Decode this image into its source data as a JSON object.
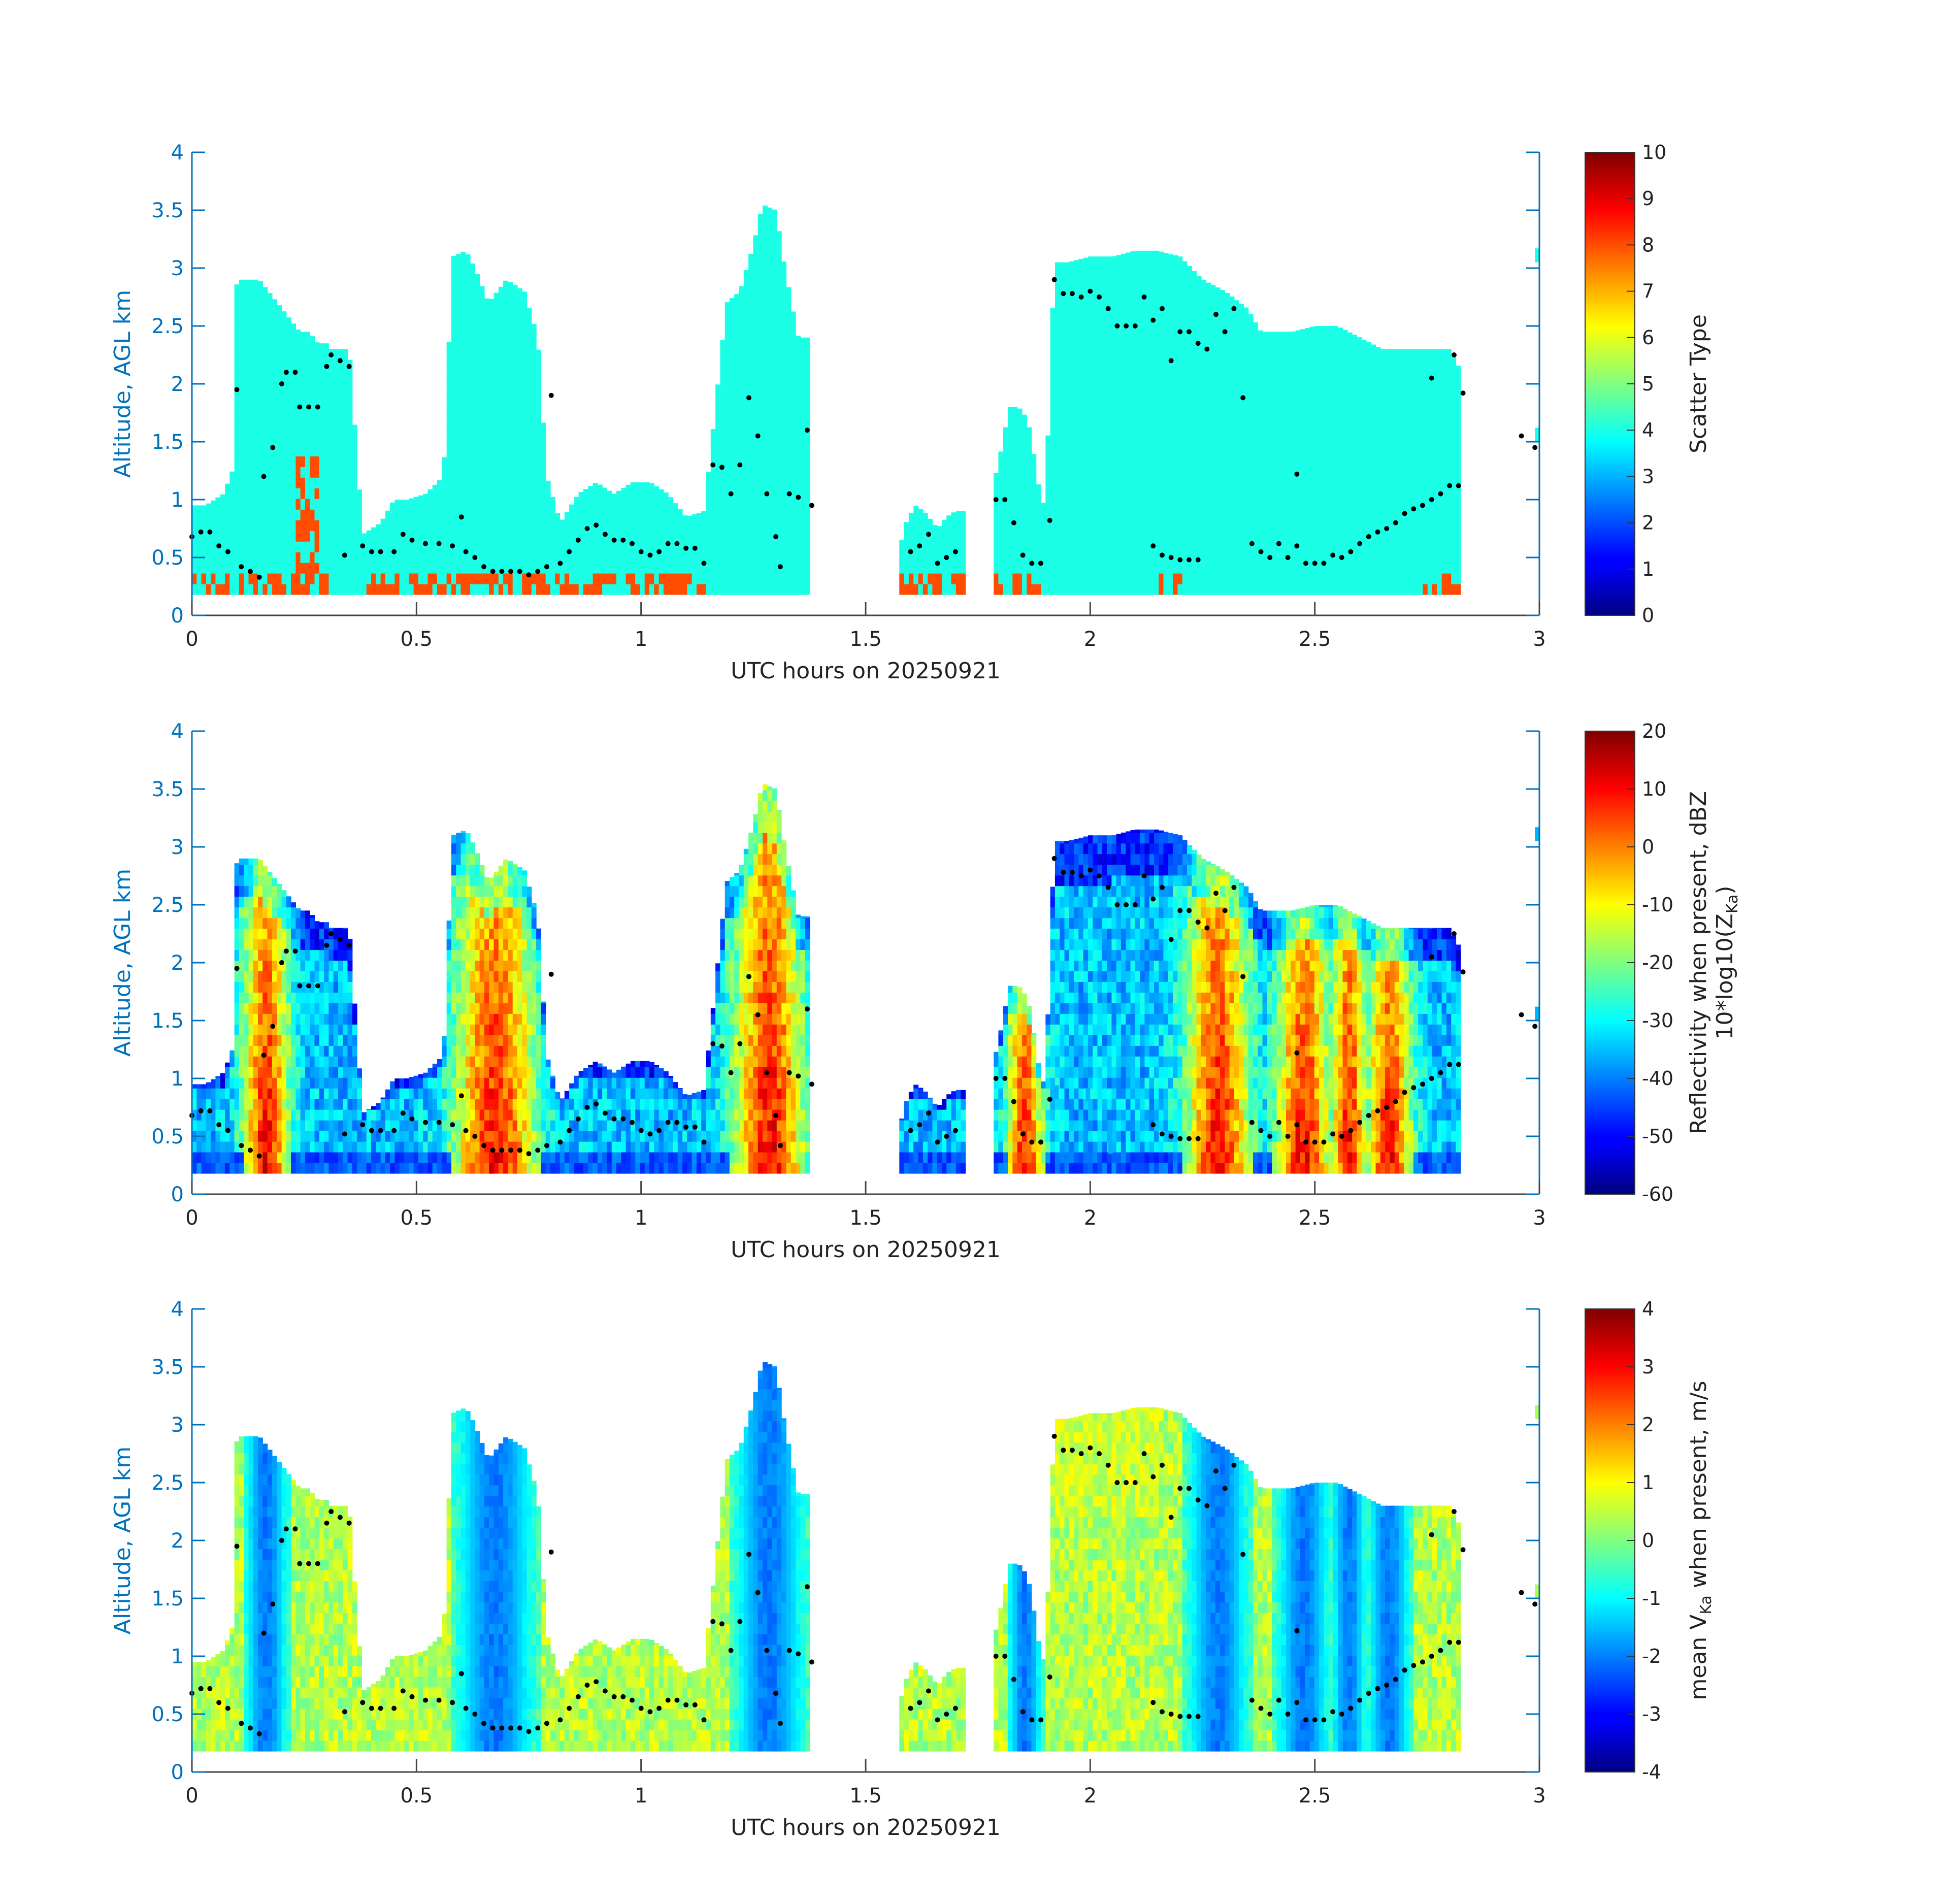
{
  "figure": {
    "background": "#ffffff",
    "axis_color": "#0072bd",
    "text_color": "#222222",
    "marker_color": "#000000"
  },
  "chart_data": [
    {
      "type": "heatmap",
      "xlabel": "UTC hours on 20250921",
      "ylabel": "Altitude, AGL km",
      "xlim": [
        0,
        3
      ],
      "ylim": [
        0,
        4
      ],
      "xticks": [
        "0",
        "0.5",
        "1",
        "1.5",
        "2",
        "2.5",
        "3"
      ],
      "yticks": [
        "0",
        "0.5",
        "1",
        "1.5",
        "2",
        "2.5",
        "3",
        "3.5",
        "4"
      ],
      "colorbar": {
        "label": "Scatter Type",
        "label_lines": [
          "Scatter Type"
        ],
        "range": [
          0,
          10
        ],
        "ticks": [
          "0",
          "1",
          "2",
          "3",
          "4",
          "5",
          "6",
          "7",
          "8",
          "9",
          "10"
        ]
      },
      "dominant_value": 4,
      "secondary_value": 8
    },
    {
      "type": "heatmap",
      "xlabel": "UTC hours on 20250921",
      "ylabel": "Altitude, AGL km",
      "xlim": [
        0,
        3
      ],
      "ylim": [
        0,
        4
      ],
      "xticks": [
        "0",
        "0.5",
        "1",
        "1.5",
        "2",
        "2.5",
        "3"
      ],
      "yticks": [
        "0",
        "0.5",
        "1",
        "1.5",
        "2",
        "2.5",
        "3",
        "3.5",
        "4"
      ],
      "colorbar": {
        "label": "Reflectivity when present, dBZ 10*log10(Z_Ka)",
        "label_lines": [
          "Reflectivity when present, dBZ",
          "10*log10(Z",
          "Ka",
          ")"
        ],
        "range": [
          -60,
          20
        ],
        "ticks": [
          "-60",
          "-50",
          "-40",
          "-30",
          "-20",
          "-10",
          "0",
          "10",
          "20"
        ]
      }
    },
    {
      "type": "heatmap",
      "xlabel": "UTC hours on 20250921",
      "ylabel": "Altitude, AGL km",
      "xlim": [
        0,
        3
      ],
      "ylim": [
        0,
        4
      ],
      "xticks": [
        "0",
        "0.5",
        "1",
        "1.5",
        "2",
        "2.5",
        "3"
      ],
      "yticks": [
        "0",
        "0.5",
        "1",
        "1.5",
        "2",
        "2.5",
        "3",
        "3.5",
        "4"
      ],
      "colorbar": {
        "label": "mean V_Ka when present, m/s",
        "label_lines": [
          "mean V",
          "Ka",
          " when present, m/s"
        ],
        "range": [
          -4,
          4
        ],
        "ticks": [
          "-4",
          "-3",
          "-2",
          "-1",
          "0",
          "1",
          "2",
          "3",
          "4"
        ]
      }
    }
  ],
  "cloud_top_km": [
    [
      0.0,
      0.95
    ],
    [
      0.03,
      0.95
    ],
    [
      0.05,
      1.0
    ],
    [
      0.07,
      1.05
    ],
    [
      0.09,
      1.25
    ],
    [
      0.1,
      2.9
    ],
    [
      0.15,
      2.9
    ],
    [
      0.17,
      2.8
    ],
    [
      0.2,
      2.65
    ],
    [
      0.22,
      2.55
    ],
    [
      0.24,
      2.45
    ],
    [
      0.26,
      2.45
    ],
    [
      0.28,
      2.35
    ],
    [
      0.3,
      2.35
    ],
    [
      0.31,
      2.3
    ],
    [
      0.35,
      2.3
    ],
    [
      0.38,
      0.7
    ],
    [
      0.42,
      0.8
    ],
    [
      0.45,
      1.0
    ],
    [
      0.48,
      1.0
    ],
    [
      0.52,
      1.05
    ],
    [
      0.56,
      1.2
    ],
    [
      0.58,
      3.1
    ],
    [
      0.61,
      3.15
    ],
    [
      0.63,
      3.0
    ],
    [
      0.66,
      2.7
    ],
    [
      0.7,
      2.9
    ],
    [
      0.74,
      2.8
    ],
    [
      0.77,
      2.4
    ],
    [
      0.79,
      1.2
    ],
    [
      0.82,
      0.8
    ],
    [
      0.86,
      1.05
    ],
    [
      0.9,
      1.15
    ],
    [
      0.94,
      1.05
    ],
    [
      0.98,
      1.15
    ],
    [
      1.02,
      1.15
    ],
    [
      1.06,
      1.05
    ],
    [
      1.1,
      0.85
    ],
    [
      1.14,
      0.9
    ],
    [
      1.16,
      1.6
    ],
    [
      1.19,
      2.7
    ],
    [
      1.22,
      2.8
    ],
    [
      1.25,
      3.2
    ],
    [
      1.27,
      3.55
    ],
    [
      1.3,
      3.5
    ],
    [
      1.32,
      3.0
    ],
    [
      1.35,
      2.4
    ],
    [
      1.38,
      2.4
    ],
    [
      1.57,
      0.5
    ],
    [
      1.59,
      0.8
    ],
    [
      1.61,
      0.95
    ],
    [
      1.63,
      0.9
    ],
    [
      1.66,
      0.75
    ],
    [
      1.68,
      0.85
    ],
    [
      1.7,
      0.9
    ],
    [
      1.72,
      0.9
    ],
    [
      1.78,
      1.05
    ],
    [
      1.8,
      1.4
    ],
    [
      1.82,
      1.8
    ],
    [
      1.84,
      1.8
    ],
    [
      1.86,
      1.7
    ],
    [
      1.87,
      1.5
    ],
    [
      1.89,
      1.0
    ],
    [
      1.9,
      0.95
    ],
    [
      1.92,
      3.05
    ],
    [
      1.95,
      3.05
    ],
    [
      2.0,
      3.1
    ],
    [
      2.05,
      3.1
    ],
    [
      2.1,
      3.15
    ],
    [
      2.15,
      3.15
    ],
    [
      2.2,
      3.1
    ],
    [
      2.25,
      2.9
    ],
    [
      2.3,
      2.8
    ],
    [
      2.35,
      2.65
    ],
    [
      2.38,
      2.45
    ],
    [
      2.4,
      2.45
    ],
    [
      2.45,
      2.45
    ],
    [
      2.5,
      2.5
    ],
    [
      2.55,
      2.5
    ],
    [
      2.6,
      2.4
    ],
    [
      2.65,
      2.3
    ],
    [
      2.7,
      2.3
    ],
    [
      2.75,
      2.3
    ],
    [
      2.8,
      2.3
    ],
    [
      2.82,
      2.15
    ]
  ],
  "cloud_base_km": 0.18,
  "markers": [
    [
      0.0,
      0.68
    ],
    [
      0.02,
      0.72
    ],
    [
      0.04,
      0.72
    ],
    [
      0.06,
      0.6
    ],
    [
      0.08,
      0.55
    ],
    [
      0.1,
      1.95
    ],
    [
      0.11,
      0.42
    ],
    [
      0.13,
      0.38
    ],
    [
      0.15,
      0.33
    ],
    [
      0.16,
      1.2
    ],
    [
      0.18,
      1.45
    ],
    [
      0.2,
      2.0
    ],
    [
      0.21,
      2.1
    ],
    [
      0.23,
      2.1
    ],
    [
      0.24,
      1.8
    ],
    [
      0.26,
      1.8
    ],
    [
      0.28,
      1.8
    ],
    [
      0.3,
      2.15
    ],
    [
      0.31,
      2.25
    ],
    [
      0.33,
      2.2
    ],
    [
      0.35,
      2.15
    ],
    [
      0.34,
      0.52
    ],
    [
      0.38,
      0.6
    ],
    [
      0.4,
      0.55
    ],
    [
      0.42,
      0.55
    ],
    [
      0.45,
      0.55
    ],
    [
      0.47,
      0.7
    ],
    [
      0.49,
      0.65
    ],
    [
      0.52,
      0.62
    ],
    [
      0.55,
      0.62
    ],
    [
      0.58,
      0.6
    ],
    [
      0.6,
      0.85
    ],
    [
      0.61,
      0.55
    ],
    [
      0.63,
      0.5
    ],
    [
      0.65,
      0.42
    ],
    [
      0.67,
      0.38
    ],
    [
      0.69,
      0.38
    ],
    [
      0.71,
      0.38
    ],
    [
      0.73,
      0.38
    ],
    [
      0.75,
      0.35
    ],
    [
      0.77,
      0.38
    ],
    [
      0.79,
      0.42
    ],
    [
      0.8,
      1.9
    ],
    [
      0.82,
      0.45
    ],
    [
      0.84,
      0.55
    ],
    [
      0.86,
      0.65
    ],
    [
      0.88,
      0.75
    ],
    [
      0.9,
      0.78
    ],
    [
      0.92,
      0.7
    ],
    [
      0.94,
      0.65
    ],
    [
      0.96,
      0.65
    ],
    [
      0.98,
      0.62
    ],
    [
      1.0,
      0.55
    ],
    [
      1.02,
      0.52
    ],
    [
      1.04,
      0.55
    ],
    [
      1.06,
      0.62
    ],
    [
      1.08,
      0.62
    ],
    [
      1.1,
      0.58
    ],
    [
      1.12,
      0.58
    ],
    [
      1.14,
      0.45
    ],
    [
      1.16,
      1.3
    ],
    [
      1.18,
      1.28
    ],
    [
      1.2,
      1.05
    ],
    [
      1.22,
      1.3
    ],
    [
      1.24,
      1.88
    ],
    [
      1.26,
      1.55
    ],
    [
      1.28,
      1.05
    ],
    [
      1.3,
      0.68
    ],
    [
      1.31,
      0.42
    ],
    [
      1.33,
      1.05
    ],
    [
      1.35,
      1.02
    ],
    [
      1.37,
      1.6
    ],
    [
      1.38,
      0.95
    ],
    [
      1.6,
      0.55
    ],
    [
      1.62,
      0.6
    ],
    [
      1.64,
      0.7
    ],
    [
      1.66,
      0.45
    ],
    [
      1.68,
      0.5
    ],
    [
      1.7,
      0.55
    ],
    [
      1.79,
      1.0
    ],
    [
      1.81,
      1.0
    ],
    [
      1.83,
      0.8
    ],
    [
      1.85,
      0.52
    ],
    [
      1.87,
      0.45
    ],
    [
      1.89,
      0.45
    ],
    [
      1.91,
      0.82
    ],
    [
      1.92,
      2.9
    ],
    [
      1.94,
      2.78
    ],
    [
      1.96,
      2.78
    ],
    [
      1.98,
      2.75
    ],
    [
      2.0,
      2.8
    ],
    [
      2.02,
      2.75
    ],
    [
      2.04,
      2.65
    ],
    [
      2.06,
      2.5
    ],
    [
      2.08,
      2.5
    ],
    [
      2.1,
      2.5
    ],
    [
      2.12,
      2.75
    ],
    [
      2.14,
      2.55
    ],
    [
      2.16,
      2.65
    ],
    [
      2.18,
      2.2
    ],
    [
      2.2,
      2.45
    ],
    [
      2.22,
      2.45
    ],
    [
      2.24,
      2.35
    ],
    [
      2.26,
      2.3
    ],
    [
      2.28,
      2.6
    ],
    [
      2.3,
      2.45
    ],
    [
      2.32,
      2.65
    ],
    [
      2.34,
      1.88
    ],
    [
      2.14,
      0.6
    ],
    [
      2.16,
      0.52
    ],
    [
      2.18,
      0.5
    ],
    [
      2.2,
      0.48
    ],
    [
      2.22,
      0.48
    ],
    [
      2.24,
      0.48
    ],
    [
      2.36,
      0.62
    ],
    [
      2.38,
      0.55
    ],
    [
      2.4,
      0.5
    ],
    [
      2.42,
      0.62
    ],
    [
      2.44,
      0.5
    ],
    [
      2.46,
      0.6
    ],
    [
      2.48,
      0.45
    ],
    [
      2.5,
      0.45
    ],
    [
      2.52,
      0.45
    ],
    [
      2.54,
      0.52
    ],
    [
      2.56,
      0.5
    ],
    [
      2.58,
      0.55
    ],
    [
      2.6,
      0.62
    ],
    [
      2.62,
      0.68
    ],
    [
      2.64,
      0.72
    ],
    [
      2.66,
      0.75
    ],
    [
      2.68,
      0.8
    ],
    [
      2.7,
      0.88
    ],
    [
      2.72,
      0.92
    ],
    [
      2.74,
      0.95
    ],
    [
      2.76,
      1.0
    ],
    [
      2.78,
      1.05
    ],
    [
      2.8,
      1.12
    ],
    [
      2.82,
      1.12
    ],
    [
      2.81,
      2.25
    ],
    [
      2.83,
      1.92
    ],
    [
      2.46,
      1.22
    ],
    [
      2.76,
      2.05
    ],
    [
      2.96,
      1.55
    ],
    [
      2.99,
      1.45
    ]
  ],
  "edge_patches": [
    [
      1.92,
      0.82
    ],
    [
      1.99,
      0.8
    ],
    [
      2.04,
      0.52
    ],
    [
      2.04,
      0.35
    ],
    [
      2.99,
      3.05
    ],
    [
      2.99,
      1.5
    ]
  ]
}
